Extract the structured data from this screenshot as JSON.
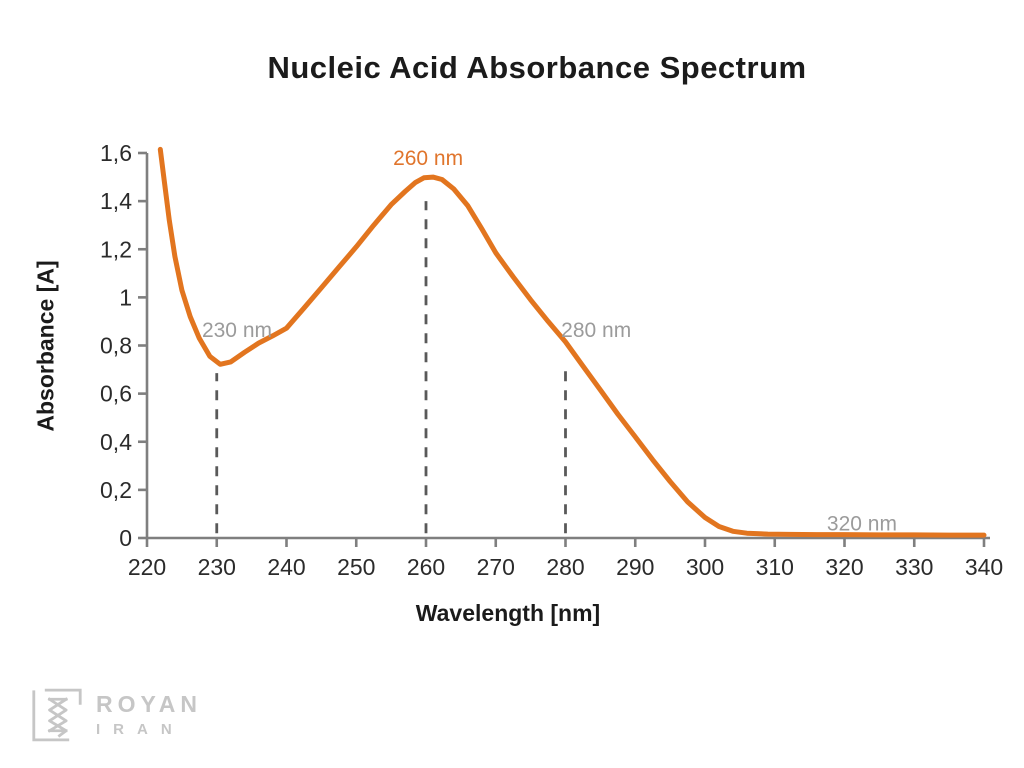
{
  "chart_data": {
    "type": "line",
    "title": "Nucleic Acid Absorbance Spectrum",
    "xlabel": "Wavelength [nm]",
    "ylabel": "Absorbance [A]",
    "xlim": [
      220,
      340
    ],
    "ylim": [
      0,
      1.6
    ],
    "grid": false,
    "legend": "none",
    "x_ticks": [
      220,
      230,
      240,
      250,
      260,
      270,
      280,
      290,
      300,
      310,
      320,
      330,
      340
    ],
    "y_ticks": [
      {
        "value": 0,
        "label": "0"
      },
      {
        "value": 0.2,
        "label": "0,2"
      },
      {
        "value": 0.4,
        "label": "0,4"
      },
      {
        "value": 0.6,
        "label": "0,6"
      },
      {
        "value": 0.8,
        "label": "0,8"
      },
      {
        "value": 1,
        "label": "1"
      },
      {
        "value": 1.2,
        "label": "1,2"
      },
      {
        "value": 1.4,
        "label": "1,4"
      },
      {
        "value": 1.6,
        "label": "1,6"
      }
    ],
    "series": [
      {
        "name": "nucleic_acid_absorbance",
        "color": "#e2751f",
        "points": [
          [
            221.9,
            1.615
          ],
          [
            222.5,
            1.48
          ],
          [
            223.2,
            1.32
          ],
          [
            224,
            1.17
          ],
          [
            225,
            1.03
          ],
          [
            226.2,
            0.92
          ],
          [
            227.5,
            0.83
          ],
          [
            229,
            0.755
          ],
          [
            230.5,
            0.722
          ],
          [
            232,
            0.732
          ],
          [
            234,
            0.772
          ],
          [
            236,
            0.81
          ],
          [
            238,
            0.84
          ],
          [
            240,
            0.872
          ],
          [
            242.5,
            0.955
          ],
          [
            245,
            1.04
          ],
          [
            247.5,
            1.125
          ],
          [
            250,
            1.21
          ],
          [
            252.5,
            1.3
          ],
          [
            255,
            1.385
          ],
          [
            257,
            1.44
          ],
          [
            258.5,
            1.478
          ],
          [
            259.7,
            1.497
          ],
          [
            261,
            1.5
          ],
          [
            262.3,
            1.49
          ],
          [
            264,
            1.45
          ],
          [
            266,
            1.38
          ],
          [
            268,
            1.285
          ],
          [
            270,
            1.185
          ],
          [
            272.5,
            1.085
          ],
          [
            275,
            0.99
          ],
          [
            277.5,
            0.9
          ],
          [
            280,
            0.815
          ],
          [
            282.5,
            0.715
          ],
          [
            285,
            0.615
          ],
          [
            287.5,
            0.515
          ],
          [
            290,
            0.42
          ],
          [
            292.5,
            0.325
          ],
          [
            295,
            0.235
          ],
          [
            297.5,
            0.15
          ],
          [
            300,
            0.085
          ],
          [
            302,
            0.048
          ],
          [
            304,
            0.028
          ],
          [
            306,
            0.02
          ],
          [
            309,
            0.016
          ],
          [
            312,
            0.015
          ],
          [
            316,
            0.014
          ],
          [
            320,
            0.014
          ],
          [
            325,
            0.013
          ],
          [
            330,
            0.013
          ],
          [
            335,
            0.012
          ],
          [
            340,
            0.012
          ]
        ]
      }
    ],
    "key_points": {
      "minimum": {
        "x": 230,
        "y": 0.72
      },
      "peak": {
        "x": 260,
        "y": 1.5
      },
      "protein_shoulder": {
        "x": 280,
        "y": 0.82
      },
      "baseline": {
        "x": 320,
        "y": 0.01
      }
    },
    "guide_lines": [
      {
        "x": 230,
        "y_from": 0.02,
        "y_to": 0.685
      },
      {
        "x": 260,
        "y_from": 0.02,
        "y_to": 1.4
      },
      {
        "x": 280,
        "y_from": 0.02,
        "y_to": 0.73
      }
    ],
    "annotations": [
      {
        "text": "260 nm",
        "x": 260.3,
        "y": 1.55,
        "color": "#e0752c"
      },
      {
        "text": "230 nm",
        "x": 232.9,
        "y": 0.835,
        "color": "#9b9b9b"
      },
      {
        "text": "280 nm",
        "x": 284.4,
        "y": 0.835,
        "color": "#9b9b9b"
      },
      {
        "text": "320 nm",
        "x": 322.5,
        "y": 0.031,
        "color": "#9b9b9b"
      }
    ],
    "colors": {
      "axis": "#7f7f7f",
      "tick_label": "#2b2b2b",
      "guide": "#595959",
      "curve": "#e2751f"
    }
  },
  "logo": {
    "brand": "ROYAN",
    "country": "IRAN",
    "color": "#c6c6c6"
  }
}
